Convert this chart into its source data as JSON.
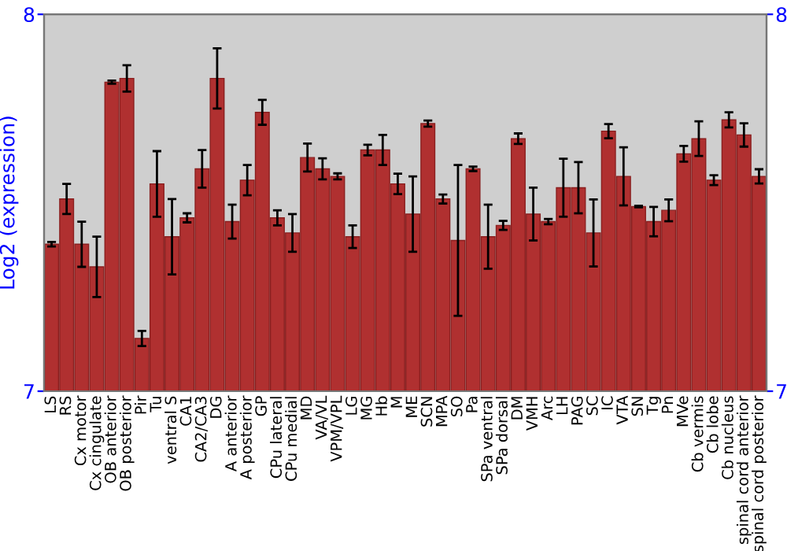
{
  "chart_data": {
    "type": "bar",
    "ylabel": "Log2 (expression)",
    "categories": [
      "LS",
      "RS",
      "Cx motor",
      "Cx cingulate",
      "OB anterior",
      "OB posterior",
      "Pir",
      "Tu",
      "ventral S",
      "CA1",
      "CA2/CA3",
      "DG",
      "A anterior",
      "A posterior",
      "GP",
      "CPu lateral",
      "CPu medial",
      "MD",
      "VA/VL",
      "VPM/VPL",
      "LG",
      "MG",
      "Hb",
      "M",
      "ME",
      "SCN",
      "MPA",
      "SO",
      "Pa",
      "SPa ventral",
      "SPa dorsal",
      "DM",
      "VMH",
      "Arc",
      "LH",
      "PAG",
      "SC",
      "IC",
      "VTA",
      "SN",
      "Tg",
      "Pn",
      "MVe",
      "Cb vermis",
      "Cb lobe",
      "Cb nucleus",
      "spinal cord anterior",
      "spinal cord posterior"
    ],
    "values": [
      7.39,
      7.51,
      7.39,
      7.33,
      7.82,
      7.83,
      7.14,
      7.55,
      7.41,
      7.46,
      7.59,
      7.83,
      7.45,
      7.56,
      7.74,
      7.46,
      7.42,
      7.62,
      7.59,
      7.57,
      7.41,
      7.64,
      7.64,
      7.55,
      7.47,
      7.71,
      7.51,
      7.4,
      7.59,
      7.41,
      7.44,
      7.67,
      7.47,
      7.45,
      7.54,
      7.54,
      7.42,
      7.69,
      7.57,
      7.49,
      7.45,
      7.48,
      7.63,
      7.67,
      7.56,
      7.72,
      7.68,
      7.57
    ],
    "errors": [
      0.006,
      0.04,
      0.06,
      0.08,
      0.004,
      0.035,
      0.02,
      0.087,
      0.1,
      0.012,
      0.05,
      0.08,
      0.045,
      0.04,
      0.033,
      0.02,
      0.05,
      0.037,
      0.028,
      0.008,
      0.03,
      0.014,
      0.04,
      0.027,
      0.1,
      0.008,
      0.012,
      0.2,
      0.006,
      0.085,
      0.012,
      0.014,
      0.07,
      0.007,
      0.077,
      0.068,
      0.089,
      0.019,
      0.077,
      0.002,
      0.039,
      0.029,
      0.021,
      0.046,
      0.013,
      0.02,
      0.031,
      0.019
    ],
    "color": "#b03030",
    "ylim": [
      7,
      8
    ],
    "yticks": [
      7,
      8
    ],
    "y2lim": [
      7,
      8
    ],
    "y2ticks": [
      7,
      8
    ],
    "grid": false
  }
}
